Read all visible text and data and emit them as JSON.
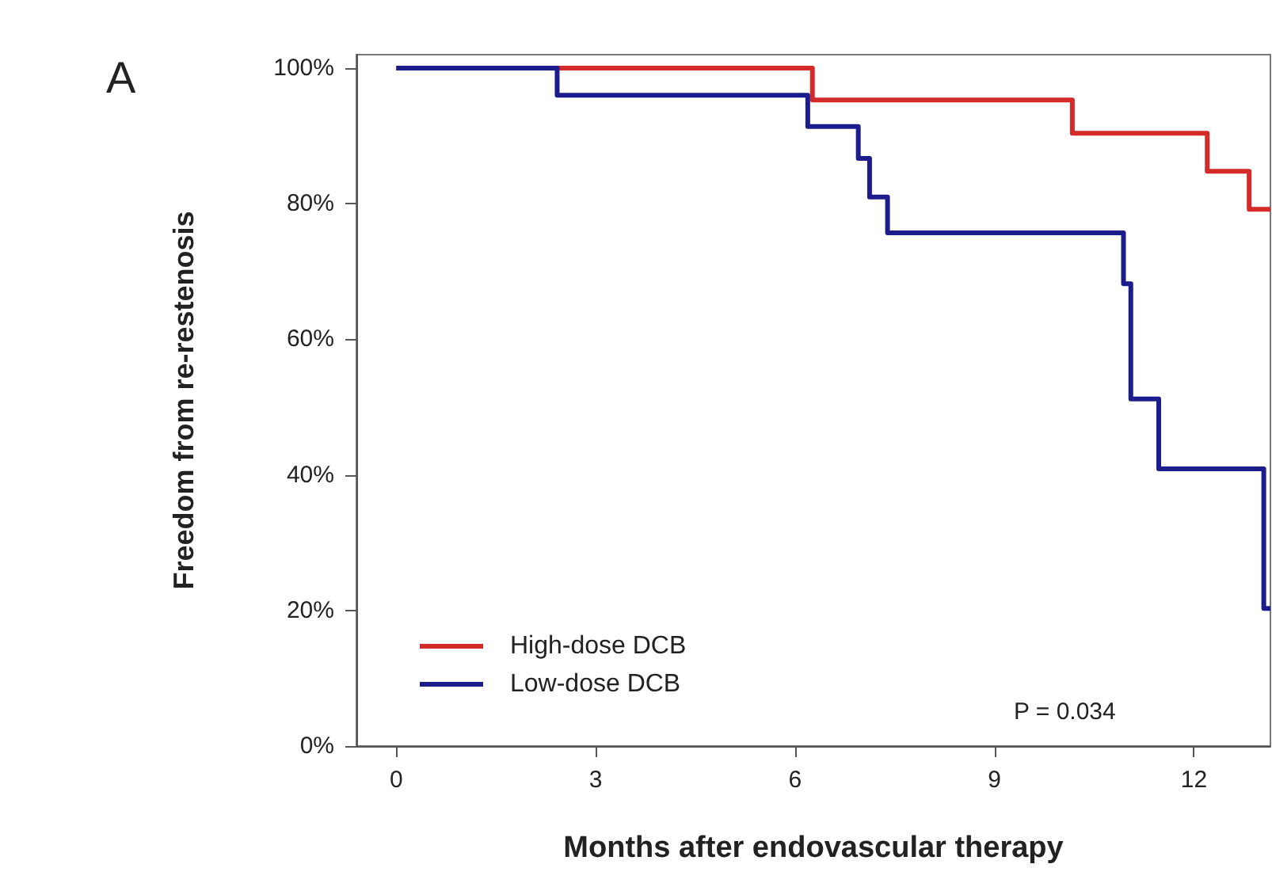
{
  "chart_data": {
    "type": "step",
    "title": "A",
    "xlabel": "Months after endovascular therapy",
    "ylabel": "Freedom from re-restenosis",
    "xlim": [
      -0.6,
      13.15
    ],
    "xticks": [
      0,
      3,
      6,
      9,
      12
    ],
    "ylim": [
      0,
      102
    ],
    "yticks": [
      {
        "value": 0,
        "label": "0%"
      },
      {
        "value": 20,
        "label": "20%"
      },
      {
        "value": 40,
        "label": "40%"
      },
      {
        "value": 60,
        "label": "60%"
      },
      {
        "value": 80,
        "label": "80%"
      },
      {
        "value": 100,
        "label": "100%"
      }
    ],
    "series": [
      {
        "name": "High-dose DCB",
        "color": "#d42a2a",
        "x": [
          0,
          6.26,
          10.17,
          12.2,
          12.83,
          13.15
        ],
        "values": [
          100,
          95.3,
          90.4,
          84.8,
          79.2,
          79.2
        ]
      },
      {
        "name": "Low-dose DCB",
        "color": "#1c1c8c",
        "x": [
          0,
          2.42,
          6.19,
          6.95,
          7.12,
          7.39,
          10.94,
          11.05,
          11.47,
          13.05,
          13.15
        ],
        "values": [
          100,
          96,
          91.4,
          86.7,
          81,
          75.7,
          68.2,
          51.2,
          40.9,
          20.3,
          20.3
        ]
      }
    ],
    "legend": "bottom left",
    "grid": false,
    "marker": "none",
    "line_style": "solid",
    "annotations": [
      "P = 0.034"
    ]
  }
}
